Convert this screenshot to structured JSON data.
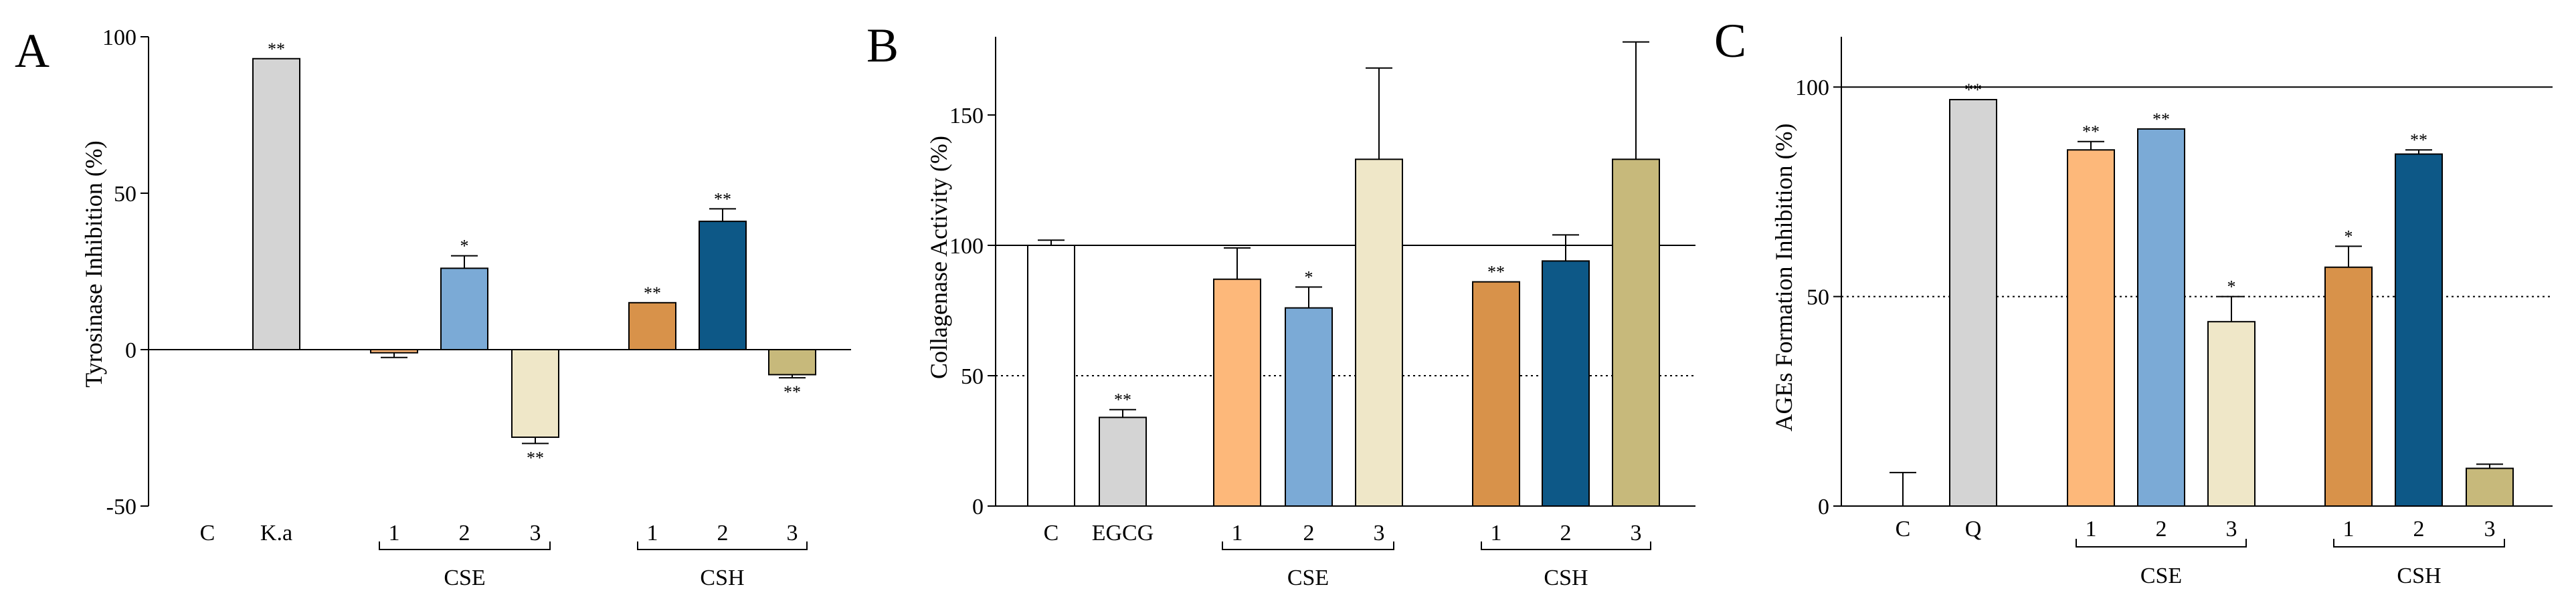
{
  "chart_data": [
    {
      "type": "bar",
      "panel": "A",
      "ylabel": "Tyrosinase Inhibition (%)",
      "ylim": [
        -50,
        100
      ],
      "yticks": [
        "100",
        "50",
        "0",
        "-50"
      ],
      "categories": [
        "C",
        "K.a",
        "1",
        "2",
        "3",
        "1",
        "2",
        "3"
      ],
      "values": [
        0,
        93,
        -1,
        26,
        -28,
        15,
        41,
        -8
      ],
      "errors": [
        0,
        0,
        1.5,
        4,
        2,
        0,
        4,
        1
      ],
      "significance": [
        "",
        "**",
        "",
        "*",
        "**",
        "**",
        "**",
        "**"
      ],
      "groups": [
        {
          "label": "CSE"
        },
        {
          "label": "CSH"
        }
      ],
      "reference_solid": null,
      "reference_dotted": null
    },
    {
      "type": "bar",
      "panel": "B",
      "ylabel": "Collagenase Activity (%)",
      "ylim": [
        0,
        180
      ],
      "yticks": [
        "150",
        "100",
        "50",
        "0"
      ],
      "categories": [
        "C",
        "EGCG",
        "1",
        "2",
        "3",
        "1",
        "2",
        "3"
      ],
      "values": [
        100,
        34,
        87,
        76,
        133,
        86,
        94,
        133
      ],
      "errors": [
        2,
        3,
        12,
        8,
        35,
        0,
        10,
        45
      ],
      "significance": [
        "",
        "**",
        "",
        "*",
        "",
        "**",
        "",
        ""
      ],
      "groups": [
        {
          "label": "CSE"
        },
        {
          "label": "CSH"
        }
      ],
      "reference_solid": 100,
      "reference_dotted": 50
    },
    {
      "type": "bar",
      "panel": "C",
      "ylabel": "AGEs Formation Inhibition (%)",
      "ylim": [
        0,
        112
      ],
      "yticks": [
        "100",
        "50",
        "0"
      ],
      "categories": [
        "C",
        "Q",
        "1",
        "2",
        "3",
        "1",
        "2",
        "3"
      ],
      "values": [
        0,
        97,
        85,
        90,
        44,
        57,
        84,
        9
      ],
      "errors": [
        8,
        0,
        2,
        0,
        6,
        5,
        1,
        1
      ],
      "significance": [
        "",
        "**",
        "**",
        "**",
        "*",
        "*",
        "**",
        ""
      ],
      "groups": [
        {
          "label": "CSE"
        },
        {
          "label": "CSH"
        }
      ],
      "reference_solid": 100,
      "reference_dotted": 50
    }
  ],
  "colors": {
    "C": "#ffffff",
    "ref": "#d4d4d4",
    "cse1": "#fdb87a",
    "cse2": "#7baad6",
    "cse3": "#efe7c8",
    "csh1": "#d8924a",
    "csh2": "#0d5887",
    "csh3": "#c7b97b"
  }
}
